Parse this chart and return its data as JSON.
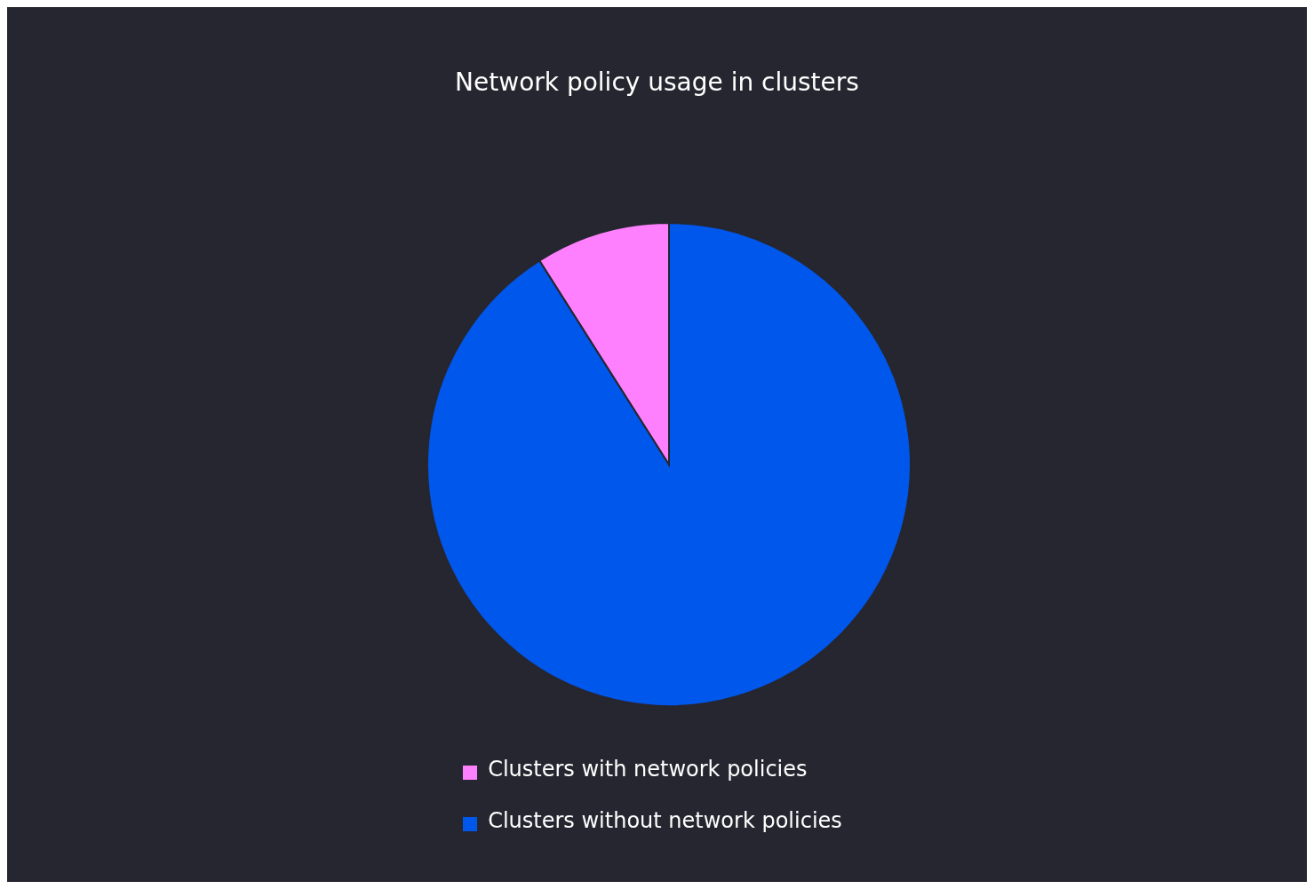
{
  "chart_data": {
    "type": "pie",
    "title": "Network policy usage in clusters",
    "categories": [
      "Clusters without network policies",
      "Clusters with network policies"
    ],
    "values": [
      91,
      9
    ],
    "colors": [
      "#0057eb",
      "#ff80ff"
    ],
    "legend": "bottom"
  }
}
